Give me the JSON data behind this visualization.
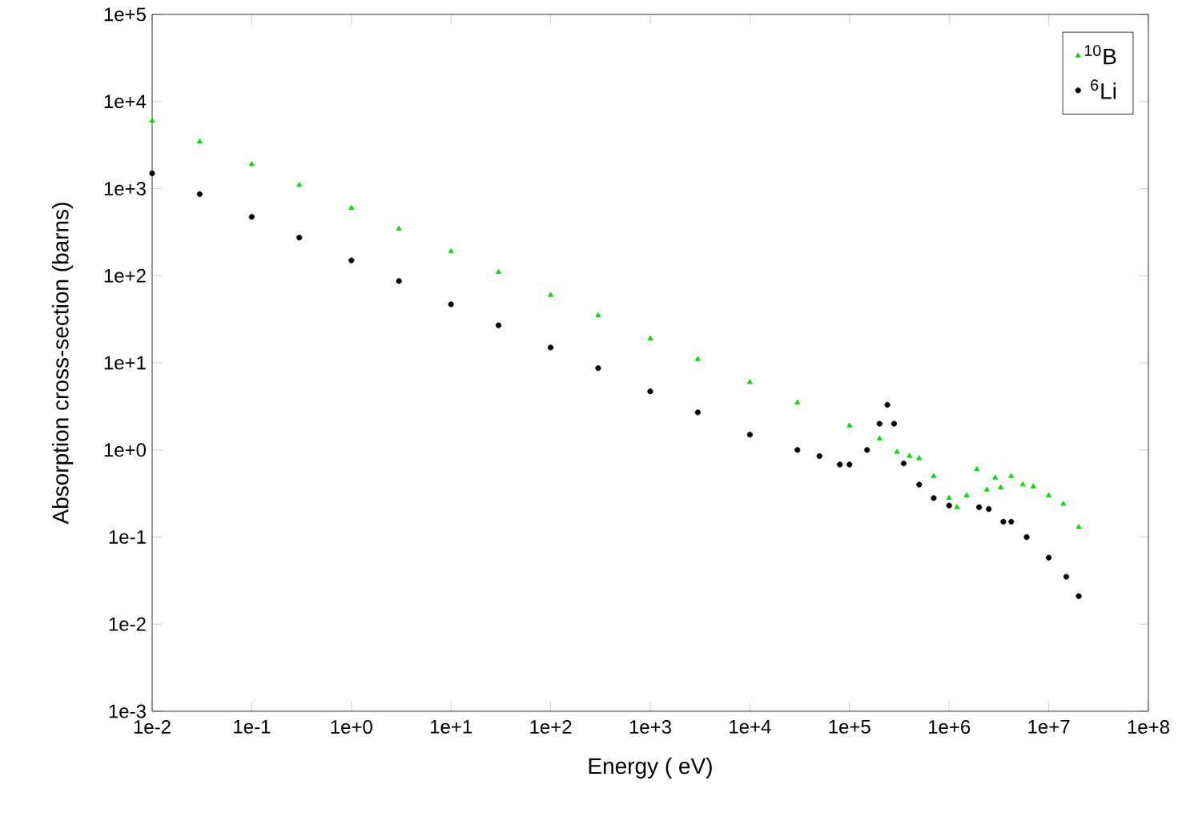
{
  "chart_data": {
    "type": "scatter",
    "xlabel": "Energy ( eV)",
    "ylabel": "Absorption cross-section (barns)",
    "log": "xy",
    "grid": false,
    "legend": "top right",
    "xlim": [
      0.01,
      100000000
    ],
    "ylim": [
      0.001,
      100000
    ],
    "xticks": [
      {
        "value": 0.01,
        "label": "1e-2"
      },
      {
        "value": 0.1,
        "label": "1e-1"
      },
      {
        "value": 1,
        "label": "1e+0"
      },
      {
        "value": 10,
        "label": "1e+1"
      },
      {
        "value": 100,
        "label": "1e+2"
      },
      {
        "value": 1000,
        "label": "1e+3"
      },
      {
        "value": 10000,
        "label": "1e+4"
      },
      {
        "value": 100000,
        "label": "1e+5"
      },
      {
        "value": 1000000,
        "label": "1e+6"
      },
      {
        "value": 10000000,
        "label": "1e+7"
      },
      {
        "value": 100000000,
        "label": "1e+8"
      }
    ],
    "yticks": [
      {
        "value": 0.001,
        "label": "1e-3"
      },
      {
        "value": 0.01,
        "label": "1e-2"
      },
      {
        "value": 0.1,
        "label": "1e-1"
      },
      {
        "value": 1,
        "label": "1e+0"
      },
      {
        "value": 10,
        "label": "1e+1"
      },
      {
        "value": 100,
        "label": "1e+2"
      },
      {
        "value": 1000,
        "label": "1e+3"
      },
      {
        "value": 10000,
        "label": "1e+4"
      },
      {
        "value": 100000,
        "label": "1e+5"
      }
    ],
    "series": [
      {
        "name": "$^{10}$B",
        "color": "#00e000",
        "marker": "triangle",
        "x": [
          0.01,
          0.03,
          0.1,
          0.3,
          1,
          3,
          10,
          30,
          100,
          300,
          1000,
          3000,
          10000,
          30000,
          100000,
          200000,
          300000,
          400000,
          500000,
          700000,
          1000000,
          1200000,
          1500000,
          1900000,
          2400000,
          2900000,
          3300000,
          4200000,
          5500000,
          7000000,
          10000000,
          14000000,
          20000000
        ],
        "values": [
          6000,
          3460,
          1900,
          1100,
          600,
          346,
          190,
          110,
          60,
          35,
          19,
          11,
          6,
          3.5,
          1.9,
          1.35,
          0.95,
          0.85,
          0.8,
          0.5,
          0.28,
          0.22,
          0.3,
          0.6,
          0.35,
          0.48,
          0.37,
          0.5,
          0.4,
          0.38,
          0.3,
          0.24,
          0.13
        ]
      },
      {
        "name": "$^{6}$Li",
        "color": "#000000",
        "marker": "circle",
        "x": [
          0.01,
          0.03,
          0.1,
          0.3,
          1,
          3,
          10,
          30,
          100,
          300,
          1000,
          3000,
          10000,
          30000,
          50000,
          80000,
          100000,
          150000,
          200000,
          240000,
          280000,
          350000,
          500000,
          700000,
          1000000,
          2000000,
          2500000,
          3500000,
          4200000,
          6000000,
          10000000,
          15000000,
          20000000
        ],
        "values": [
          1500,
          865,
          475,
          274,
          150,
          87,
          47,
          27,
          15,
          8.7,
          4.7,
          2.7,
          1.5,
          1.0,
          0.85,
          0.68,
          0.68,
          1.0,
          2.0,
          3.3,
          2.0,
          0.7,
          0.4,
          0.28,
          0.23,
          0.22,
          0.21,
          0.15,
          0.15,
          0.1,
          0.058,
          0.035,
          0.021
        ]
      }
    ]
  }
}
